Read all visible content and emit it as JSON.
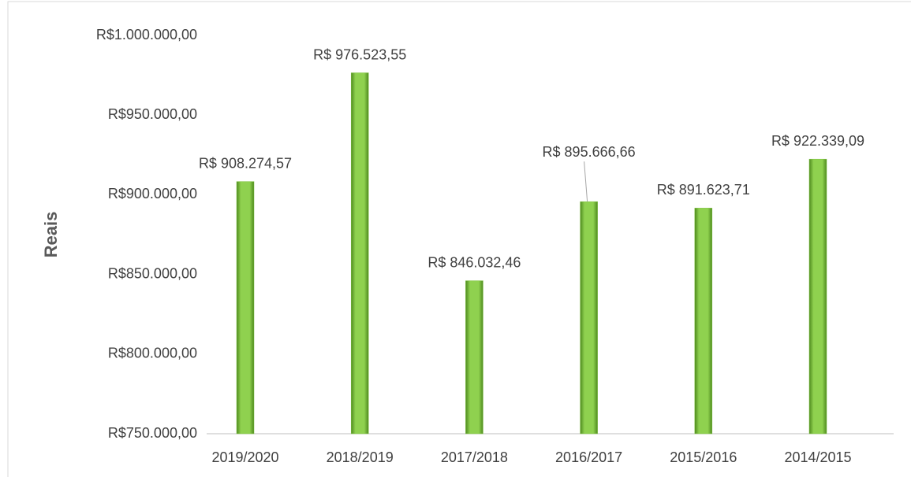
{
  "chart_data": {
    "type": "bar",
    "y_label": "Reais",
    "categories": [
      "2019/2020",
      "2018/2019",
      "2017/2018",
      "2016/2017",
      "2015/2016",
      "2014/2015"
    ],
    "values": [
      908274.57,
      976523.55,
      846032.46,
      895666.66,
      891623.71,
      922339.09
    ],
    "value_labels": [
      "R$ 908.274,57",
      "R$ 976.523,55",
      "R$ 846.032,46",
      "R$ 895.666,66",
      "R$ 891.623,71",
      "R$ 922.339,09"
    ],
    "color": "#7cc13e",
    "ylim": [
      750000,
      1000000
    ],
    "yticks": [
      {
        "value": 750000,
        "label": "R$750.000,00"
      },
      {
        "value": 800000,
        "label": "R$800.000,00"
      },
      {
        "value": 850000,
        "label": "R$850.000,00"
      },
      {
        "value": 900000,
        "label": "R$900.000,00"
      },
      {
        "value": 950000,
        "label": "R$950.000,00"
      },
      {
        "value": 1000000,
        "label": "R$1.000.000,00"
      }
    ],
    "grid": false
  }
}
